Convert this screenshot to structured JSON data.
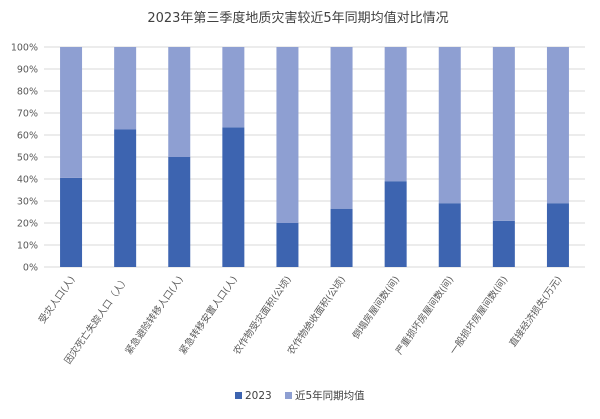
{
  "chart_data": {
    "type": "bar",
    "stacked": true,
    "percent_stacked": true,
    "title": "2023年第三季度地质灾害较近5年同期均值对比情况",
    "xlabel": "",
    "ylabel": "",
    "ylim": [
      0,
      100
    ],
    "yticks": [
      "0%",
      "10%",
      "20%",
      "30%",
      "40%",
      "50%",
      "60%",
      "70%",
      "80%",
      "90%",
      "100%"
    ],
    "grid": true,
    "legend_position": "bottom",
    "categories": [
      "受灾人口(人)",
      "因灾死亡失踪人口（人）",
      "紧急避险转移人口(人)",
      "紧急转移安置人口(人)",
      "农作物受灾面积(公顷)",
      "农作物绝收面积(公顷)",
      "倒塌房屋间数(间)",
      "严重损坏房屋间数(间)",
      "一般损坏房屋间数(间)",
      "直接经济损失(万元)"
    ],
    "series": [
      {
        "name": "2023",
        "color": "#3d64b0",
        "values": [
          40.5,
          62.5,
          50,
          63.5,
          20,
          26.5,
          39,
          29,
          21,
          29
        ]
      },
      {
        "name": "近5年同期均值",
        "color": "#8e9fd2",
        "values": [
          59.5,
          37.5,
          50,
          36.5,
          80,
          73.5,
          61,
          71,
          79,
          71
        ]
      }
    ]
  }
}
